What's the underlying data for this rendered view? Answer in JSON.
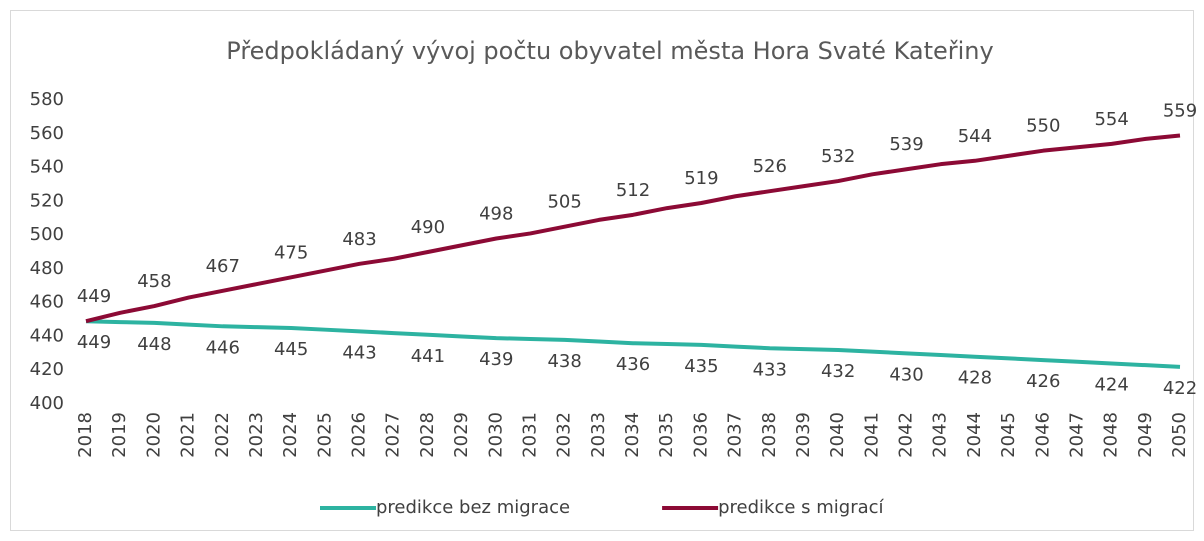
{
  "chart_data": {
    "type": "line",
    "title": "Předpokládaný vývoj počtu obyvatel města Hora Svaté Kateřiny",
    "x": [
      2018,
      2019,
      2020,
      2021,
      2022,
      2023,
      2024,
      2025,
      2026,
      2027,
      2028,
      2029,
      2030,
      2031,
      2032,
      2033,
      2034,
      2035,
      2036,
      2037,
      2038,
      2039,
      2040,
      2041,
      2042,
      2043,
      2044,
      2045,
      2046,
      2047,
      2048,
      2049,
      2050
    ],
    "xlim": [
      2018,
      2050
    ],
    "xticks": [
      2018,
      2019,
      2020,
      2021,
      2022,
      2023,
      2024,
      2025,
      2026,
      2027,
      2028,
      2029,
      2030,
      2031,
      2032,
      2033,
      2034,
      2035,
      2036,
      2037,
      2038,
      2039,
      2040,
      2041,
      2042,
      2043,
      2044,
      2045,
      2046,
      2047,
      2048,
      2049,
      2050
    ],
    "ylim": [
      400,
      580
    ],
    "yticks": [
      400,
      420,
      440,
      460,
      480,
      500,
      520,
      540,
      560,
      580
    ],
    "grid": false,
    "legend": "bottom",
    "series": [
      {
        "name": "predikce bez migrace",
        "color": "#2db3a1",
        "values": [
          449,
          448.5,
          448,
          447,
          446,
          445.5,
          445,
          444,
          443,
          442,
          441,
          440,
          439,
          438.5,
          438,
          437,
          436,
          435.5,
          435,
          434,
          433,
          432.5,
          432,
          431,
          430,
          429,
          428,
          427,
          426,
          425,
          424,
          423,
          422
        ],
        "value_labels": [
          "449",
          null,
          "448",
          null,
          "446",
          null,
          "445",
          null,
          "443",
          null,
          "441",
          null,
          "439",
          null,
          "438",
          null,
          "436",
          null,
          "435",
          null,
          "433",
          null,
          "432",
          null,
          "430",
          null,
          "428",
          null,
          "426",
          null,
          "424",
          null,
          "422"
        ]
      },
      {
        "name": "predikce s migrací",
        "color": "#8c0a35",
        "values": [
          449,
          454,
          458,
          463,
          467,
          471,
          475,
          479,
          483,
          486,
          490,
          494,
          498,
          501,
          505,
          509,
          512,
          516,
          519,
          523,
          526,
          529,
          532,
          536,
          539,
          542,
          544,
          547,
          550,
          552,
          554,
          557,
          559
        ],
        "value_labels": [
          "449",
          null,
          "458",
          null,
          "467",
          null,
          "475",
          null,
          "483",
          null,
          "490",
          null,
          "498",
          null,
          "505",
          null,
          "512",
          null,
          "519",
          null,
          "526",
          null,
          "532",
          null,
          "539",
          null,
          "544",
          null,
          "550",
          null,
          "554",
          null,
          "559"
        ]
      }
    ]
  }
}
